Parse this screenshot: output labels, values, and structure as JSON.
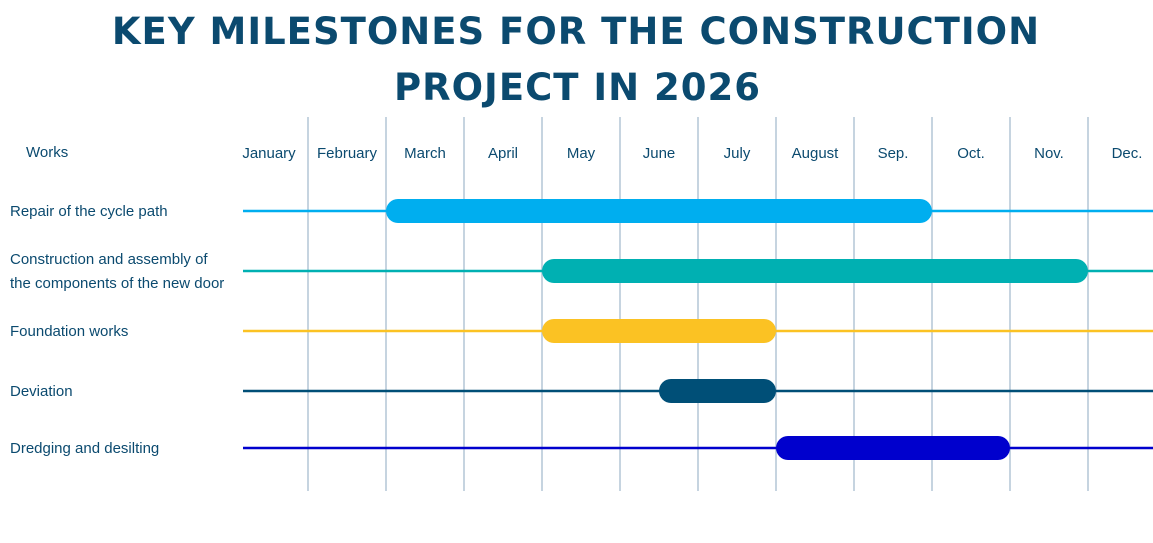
{
  "title": {
    "line1": "Key milestones for the construction",
    "line2": "project in 2026"
  },
  "colors": {
    "title": "#0b4a6f",
    "text": "#0b4a6f",
    "grid": "#b4c6d6"
  },
  "chart_data": {
    "type": "gantt",
    "row_header": "Works",
    "months": [
      "January",
      "February",
      "March",
      "April",
      "May",
      "June",
      "July",
      "August",
      "Sep.",
      "Oct.",
      "Nov.",
      "Dec."
    ],
    "tasks": [
      {
        "label_lines": [
          "Repair of the cycle path"
        ],
        "start_month": 3,
        "end_month": 10,
        "color": "#00aeef"
      },
      {
        "label_lines": [
          "Construction and assembly of",
          "the components of the new door"
        ],
        "start_month": 5,
        "end_month": 12,
        "color": "#00b0b2"
      },
      {
        "label_lines": [
          "Foundation works"
        ],
        "start_month": 5,
        "end_month": 8,
        "color": "#fbc223"
      },
      {
        "label_lines": [
          "Deviation"
        ],
        "start_month": 6.5,
        "end_month": 8,
        "color": "#004f77"
      },
      {
        "label_lines": [
          "Dredging and desilting"
        ],
        "start_month": 8,
        "end_month": 11,
        "color": "#0000cd"
      }
    ]
  }
}
